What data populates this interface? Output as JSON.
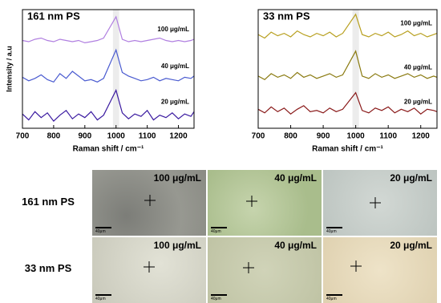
{
  "chart_data": [
    {
      "type": "line",
      "title": "161 nm PS",
      "x_label": "Raman shift / cm⁻¹",
      "y_label": "Intensity / a.u",
      "x": [
        700,
        720,
        740,
        760,
        780,
        800,
        820,
        840,
        860,
        880,
        900,
        920,
        940,
        960,
        1000,
        1020,
        1040,
        1060,
        1080,
        1100,
        1120,
        1140,
        1160,
        1180,
        1200,
        1220,
        1240,
        1250
      ],
      "xlim": [
        700,
        1250
      ],
      "xticks": [
        700,
        800,
        900,
        1000,
        1100,
        1200
      ],
      "ylim": [
        0,
        10
      ],
      "highlight_band": [
        990,
        1010
      ],
      "series": [
        {
          "name": "100 μg/mL",
          "color": "#b07fe0",
          "values": [
            7.4,
            7.3,
            7.5,
            7.6,
            7.4,
            7.3,
            7.5,
            7.4,
            7.3,
            7.4,
            7.2,
            7.3,
            7.4,
            7.6,
            9.4,
            7.5,
            7.3,
            7.4,
            7.3,
            7.4,
            7.5,
            7.6,
            7.4,
            7.3,
            7.4,
            7.3,
            7.4,
            7.5
          ]
        },
        {
          "name": "40 μg/mL",
          "color": "#4a5bd0",
          "values": [
            4.3,
            4.0,
            4.2,
            4.5,
            4.1,
            3.9,
            4.6,
            4.2,
            4.8,
            4.4,
            4.0,
            4.1,
            3.9,
            4.2,
            6.6,
            4.7,
            4.4,
            4.2,
            4.0,
            4.1,
            4.3,
            4.0,
            4.2,
            4.1,
            4.0,
            4.3,
            4.2,
            4.4
          ]
        },
        {
          "name": "20 μg/mL",
          "color": "#3a1aa0",
          "values": [
            1.2,
            0.7,
            1.4,
            0.9,
            1.3,
            0.6,
            1.1,
            1.5,
            0.8,
            1.2,
            0.9,
            1.4,
            0.7,
            1.1,
            3.2,
            1.3,
            0.8,
            1.2,
            1.0,
            1.5,
            0.7,
            1.1,
            0.9,
            1.3,
            0.8,
            1.2,
            1.0,
            1.4
          ]
        }
      ]
    },
    {
      "type": "line",
      "title": "33 nm PS",
      "x_label": "Raman shift / cm⁻¹",
      "x": [
        700,
        720,
        740,
        760,
        780,
        800,
        820,
        840,
        860,
        880,
        900,
        920,
        940,
        960,
        1000,
        1020,
        1040,
        1060,
        1080,
        1100,
        1120,
        1140,
        1160,
        1180,
        1200,
        1220,
        1240,
        1250
      ],
      "xlim": [
        700,
        1250
      ],
      "xticks": [
        700,
        800,
        900,
        1000,
        1100,
        1200
      ],
      "ylim": [
        0,
        10
      ],
      "highlight_band": [
        990,
        1010
      ],
      "series": [
        {
          "name": "100 μg/mL",
          "color": "#b8a020",
          "values": [
            7.9,
            7.6,
            8.1,
            7.8,
            8.0,
            7.7,
            8.2,
            7.9,
            7.7,
            8.0,
            7.8,
            8.1,
            7.7,
            8.0,
            9.6,
            7.9,
            7.7,
            8.0,
            7.8,
            8.1,
            7.7,
            7.9,
            8.2,
            7.8,
            8.0,
            7.7,
            7.9,
            8.0
          ]
        },
        {
          "name": "40 μg/mL",
          "color": "#8a7a10",
          "values": [
            4.4,
            4.1,
            4.6,
            4.3,
            4.5,
            4.2,
            4.7,
            4.3,
            4.5,
            4.2,
            4.4,
            4.6,
            4.3,
            4.5,
            6.5,
            4.4,
            4.2,
            4.6,
            4.3,
            4.5,
            4.2,
            4.4,
            4.6,
            4.3,
            4.5,
            4.2,
            4.4,
            4.3
          ]
        },
        {
          "name": "20 μg/mL",
          "color": "#8a1a1a",
          "values": [
            1.6,
            1.3,
            1.8,
            1.4,
            1.7,
            1.2,
            1.6,
            1.9,
            1.4,
            1.5,
            1.3,
            1.7,
            1.4,
            1.6,
            3.0,
            1.5,
            1.3,
            1.7,
            1.5,
            1.8,
            1.3,
            1.6,
            1.4,
            1.7,
            1.2,
            1.6,
            1.5,
            1.4
          ]
        }
      ]
    }
  ],
  "images": {
    "rows": [
      {
        "label": "161 nm PS",
        "panels": [
          {
            "label": "100 μg/mL",
            "scale": "40μm"
          },
          {
            "label": "40 μg/mL",
            "scale": "40μm"
          },
          {
            "label": "20 μg/mL",
            "scale": "40μm"
          }
        ]
      },
      {
        "label": "33 nm PS",
        "panels": [
          {
            "label": "100 μg/mL",
            "scale": "40μm"
          },
          {
            "label": "40 μg/mL",
            "scale": "40μm"
          },
          {
            "label": "20 μg/mL",
            "scale": "40μm"
          }
        ]
      }
    ]
  }
}
